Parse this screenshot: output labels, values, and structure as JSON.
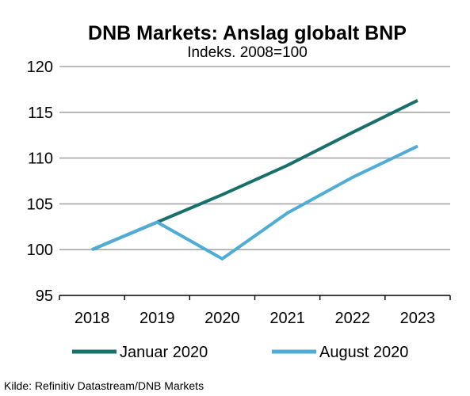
{
  "chart_data": {
    "type": "line",
    "title": "DNB Markets: Anslag globalt BNP",
    "subtitle": "Indeks. 2008=100",
    "xlabel": "",
    "ylabel": "",
    "categories": [
      "2018",
      "2019",
      "2020",
      "2021",
      "2022",
      "2023"
    ],
    "ylim": [
      95,
      120
    ],
    "yticks": [
      95,
      100,
      105,
      110,
      115,
      120
    ],
    "grid": true,
    "legend_position": "bottom",
    "series": [
      {
        "name": "Januar 2020",
        "color": "#17706a",
        "values": [
          100,
          103,
          106,
          109.2,
          112.8,
          116.3
        ]
      },
      {
        "name": "August 2020",
        "color": "#4eacd5",
        "values": [
          100,
          103,
          99,
          104,
          107.9,
          111.3
        ]
      }
    ]
  },
  "source": "Kilde: Refinitiv Datastream/DNB  Markets"
}
